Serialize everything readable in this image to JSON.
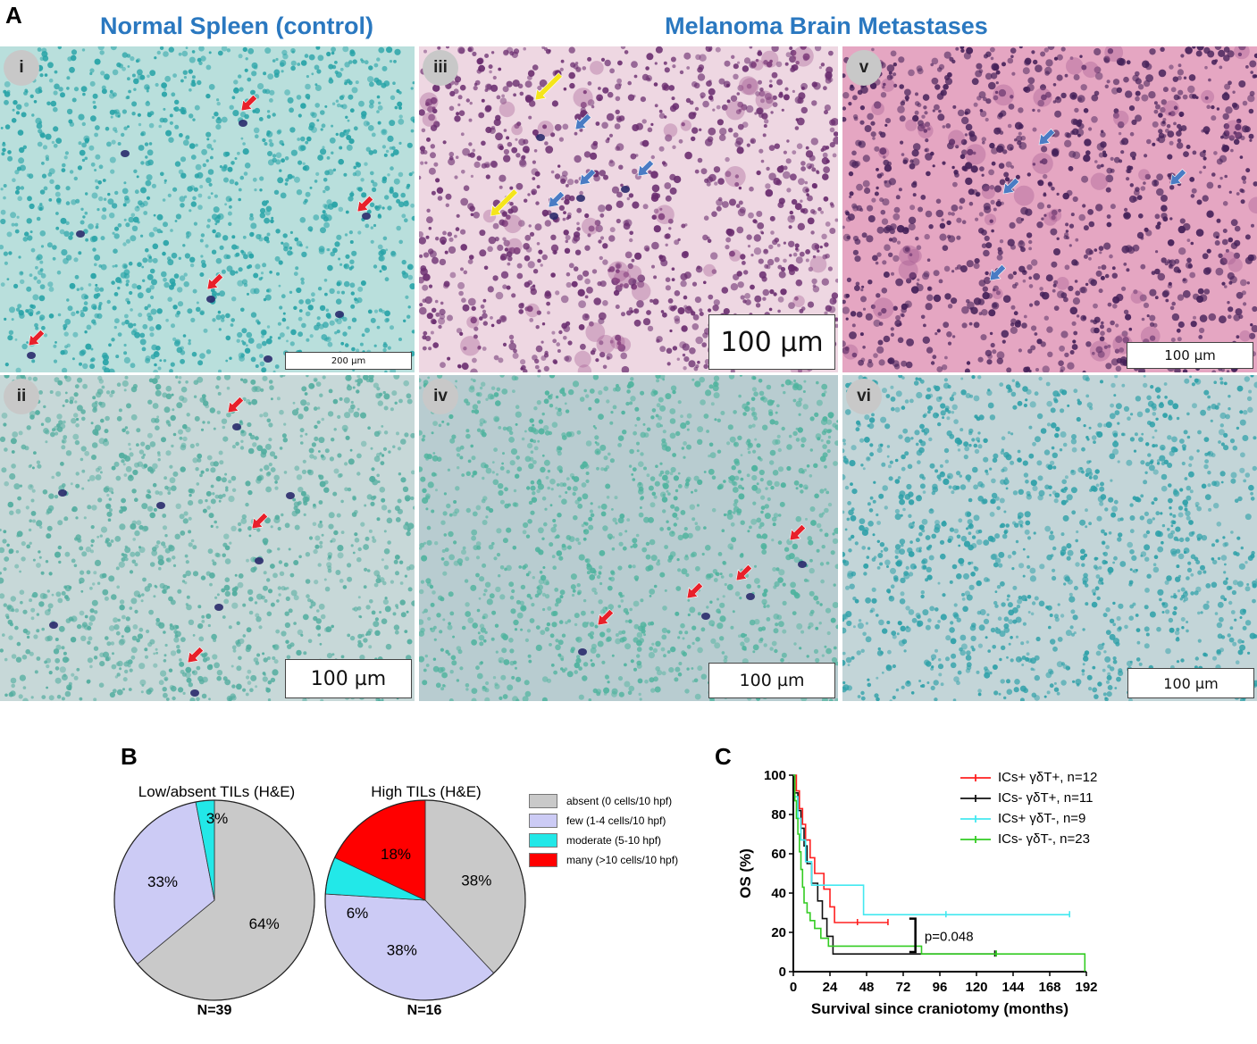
{
  "panel_letters": {
    "a": "A",
    "b": "B",
    "c": "C"
  },
  "section_titles": {
    "left": "Normal Spleen (control)",
    "right": "Melanoma Brain Metastases"
  },
  "micrographs": [
    {
      "label": "i",
      "scale": "200 µm",
      "stain": "green",
      "base_color": "#b9dfdc",
      "cell_color": "#27a3a7"
    },
    {
      "label": "iii",
      "scale": "100 µm",
      "stain": "he",
      "base_color": "#eed7e2",
      "cell_color": "#6a2d6f"
    },
    {
      "label": "v",
      "scale": "100 µm",
      "stain": "he",
      "base_color": "#e5a6c2",
      "cell_color": "#452159"
    },
    {
      "label": "ii",
      "scale": "100 µm",
      "stain": "green",
      "base_color": "#c7d8d8",
      "cell_color": "#52ad9f"
    },
    {
      "label": "iv",
      "scale": "100 µm",
      "stain": "green",
      "base_color": "#b8ccd0",
      "cell_color": "#4fb39e"
    },
    {
      "label": "vi",
      "scale": "100 µm",
      "stain": "green",
      "base_color": "#c3d5d8",
      "cell_color": "#2da0a8"
    }
  ],
  "arrow_colors": {
    "red": "#e8202a",
    "blue": "#4a7cc4",
    "yellow": "#f5e51b"
  },
  "pie_charts": {
    "legend": [
      {
        "label": "absent (0 cells/10 hpf)",
        "color": "#c9c9c9"
      },
      {
        "label": "few (1-4 cells/10 hpf)",
        "color": "#cccbf5"
      },
      {
        "label": "moderate (5-10 hpf)",
        "color": "#22e8e8"
      },
      {
        "label": "many (>10 cells/10 hpf)",
        "color": "#ff0000"
      }
    ],
    "charts": [
      {
        "title": "Low/absent TILs (H&E)",
        "n_label": "N=39",
        "slices": [
          {
            "category": "absent",
            "value": 64,
            "label": "64%"
          },
          {
            "category": "few",
            "value": 33,
            "label": "33%"
          },
          {
            "category": "moderate",
            "value": 3,
            "label": "3%"
          }
        ]
      },
      {
        "title": "High TILs (H&E)",
        "n_label": "N=16",
        "slices": [
          {
            "category": "absent",
            "value": 38,
            "label": "38%"
          },
          {
            "category": "few",
            "value": 38,
            "label": "38%"
          },
          {
            "category": "moderate",
            "value": 6,
            "label": "6%"
          },
          {
            "category": "many",
            "value": 18,
            "label": "18%"
          }
        ]
      }
    ]
  },
  "chart_data": {
    "type": "line",
    "subtype": "kaplan-meier",
    "xlabel": "Survival since craniotomy (months)",
    "ylabel": "OS (%)",
    "xlim": [
      0,
      192
    ],
    "ylim": [
      0,
      100
    ],
    "xticks": [
      0,
      24,
      48,
      72,
      96,
      120,
      144,
      168,
      192
    ],
    "yticks": [
      0,
      20,
      40,
      60,
      80,
      100
    ],
    "annotation": "p=0.048",
    "series": [
      {
        "name": "ICs+ γδT+, n=12",
        "color": "#ff2020",
        "x": [
          0,
          2,
          4,
          6,
          8,
          11,
          14,
          17,
          20,
          24,
          27,
          32,
          36,
          42,
          62
        ],
        "y": [
          100,
          92,
          83,
          75,
          67,
          58,
          50,
          50,
          42,
          33,
          25,
          25,
          25,
          25,
          25
        ],
        "censor": [
          [
            42,
            25
          ],
          [
            62,
            25
          ]
        ]
      },
      {
        "name": "ICs- γδT+, n=11",
        "color": "#111111",
        "x": [
          0,
          1,
          3,
          5,
          7,
          9,
          12,
          16,
          19,
          22,
          26,
          33,
          132
        ],
        "y": [
          100,
          91,
          82,
          73,
          64,
          55,
          45,
          36,
          27,
          18,
          9,
          9,
          9
        ],
        "censor": [
          [
            132,
            9
          ]
        ]
      },
      {
        "name": "ICs+ γδT-, n=9",
        "color": "#44e8f0",
        "x": [
          0,
          1,
          3,
          5,
          8,
          12,
          16,
          46,
          181
        ],
        "y": [
          100,
          89,
          78,
          67,
          56,
          44,
          44,
          29,
          29
        ],
        "censor": [
          [
            100,
            29
          ],
          [
            181,
            29
          ]
        ]
      },
      {
        "name": "ICs- γδT-, n=23",
        "color": "#33cc22",
        "x": [
          0,
          1,
          2,
          3,
          4,
          5,
          6,
          7,
          9,
          11,
          14,
          18,
          23,
          30,
          40,
          84,
          133,
          191
        ],
        "y": [
          100,
          87,
          78,
          70,
          61,
          52,
          43,
          35,
          30,
          26,
          22,
          17,
          13,
          13,
          13,
          9,
          9,
          0
        ],
        "censor": [
          [
            133,
            9
          ]
        ]
      }
    ]
  }
}
